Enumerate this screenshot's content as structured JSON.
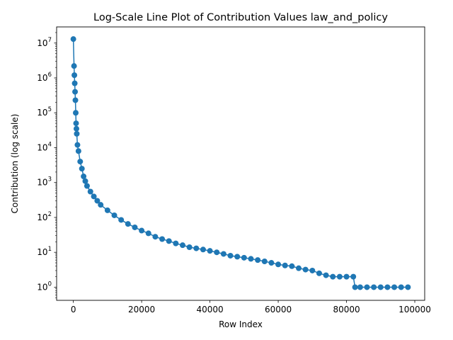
{
  "chart_data": {
    "type": "line",
    "title": "Log-Scale Line Plot of Contribution Values law_and_policy",
    "xlabel": "Row Index",
    "ylabel": "Contribution (log scale)",
    "xlim": [
      -4900,
      102900
    ],
    "ylim": [
      0.42,
      29000000
    ],
    "yscale": "log",
    "grid": false,
    "legend": "none",
    "xticks": [
      {
        "value": 0,
        "label": "0"
      },
      {
        "value": 20000,
        "label": "20000"
      },
      {
        "value": 40000,
        "label": "40000"
      },
      {
        "value": 60000,
        "label": "60000"
      },
      {
        "value": 80000,
        "label": "80000"
      },
      {
        "value": 100000,
        "label": "100000"
      }
    ],
    "yticks": [
      {
        "value": 1,
        "base": "10",
        "exp": "0"
      },
      {
        "value": 10,
        "base": "10",
        "exp": "1"
      },
      {
        "value": 100,
        "base": "10",
        "exp": "2"
      },
      {
        "value": 1000,
        "base": "10",
        "exp": "3"
      },
      {
        "value": 10000,
        "base": "10",
        "exp": "4"
      },
      {
        "value": 100000,
        "base": "10",
        "exp": "5"
      },
      {
        "value": 1000000,
        "base": "10",
        "exp": "6"
      },
      {
        "value": 10000000,
        "base": "10",
        "exp": "7"
      }
    ],
    "series": [
      {
        "color": "#1f77b4",
        "x": [
          0,
          200,
          300,
          400,
          500,
          600,
          700,
          800,
          900,
          1000,
          1200,
          1500,
          2000,
          2500,
          3000,
          3500,
          4000,
          5000,
          6000,
          7000,
          8000,
          10000,
          12000,
          14000,
          16000,
          18000,
          20000,
          22000,
          24000,
          26000,
          28000,
          30000,
          32000,
          34000,
          36000,
          38000,
          40000,
          42000,
          44000,
          46000,
          48000,
          50000,
          52000,
          54000,
          56000,
          58000,
          60000,
          62000,
          64000,
          66000,
          68000,
          70000,
          72000,
          74000,
          76000,
          78000,
          80000,
          82000,
          82500,
          84000,
          86000,
          88000,
          90000,
          92000,
          94000,
          96000,
          98000
        ],
        "y": [
          13000000,
          2200000,
          1200000,
          700000,
          400000,
          230000,
          100000,
          50000,
          35000,
          25000,
          12000,
          8000,
          4000,
          2500,
          1500,
          1100,
          800,
          550,
          400,
          300,
          230,
          160,
          115,
          85,
          65,
          52,
          42,
          35,
          28,
          24,
          21,
          18,
          16,
          14,
          13,
          12,
          11,
          10,
          9,
          8,
          7.5,
          7,
          6.5,
          6,
          5.5,
          5,
          4.5,
          4.2,
          4,
          3.5,
          3.2,
          3,
          2.5,
          2.2,
          2,
          2,
          2,
          2,
          1,
          1,
          1,
          1,
          1,
          1,
          1,
          1,
          1
        ]
      }
    ]
  }
}
